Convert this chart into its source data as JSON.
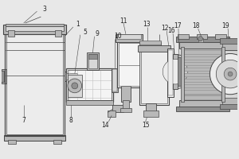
{
  "bg_color": "#e8e8e8",
  "line_color": "#444444",
  "fill_light": "#d8d8d8",
  "fill_medium": "#b8b8b8",
  "fill_dark": "#909090",
  "fill_white": "#f4f4f4",
  "fill_very_light": "#ececec",
  "label_color": "#222222",
  "figsize": [
    3.0,
    2.0
  ],
  "dpi": 100
}
